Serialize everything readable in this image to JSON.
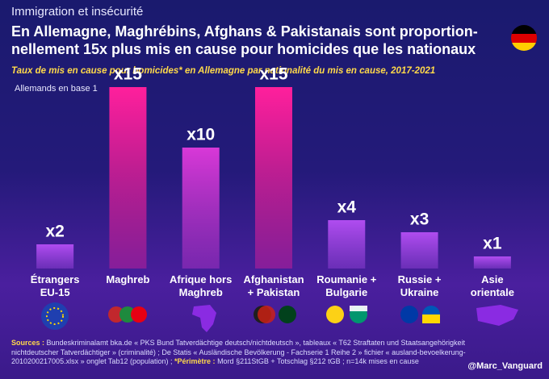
{
  "kicker": "Immigration et insécurité",
  "chart_data": {
    "type": "bar",
    "title": "En Allemagne, Maghrébins, Afghans & Pakistanais sont proportion-nellement 15x plus mis en cause pour homicides que les nationaux",
    "subtitle": "Taux de mis en cause pour homicides* en Allemagne par nationalité du mis en cause, 2017-2021",
    "annotation": "Allemands en base 1",
    "categories": [
      "Étrangers\nEU-15",
      "Maghreb",
      "Afrique hors\nMaghreb",
      "Afghanistan\n+ Pakistan",
      "Roumanie +\nBulgarie",
      "Russie +\nUkraine",
      "Asie\norientale"
    ],
    "values": [
      2,
      15,
      10,
      15,
      4,
      3,
      1
    ],
    "value_labels": [
      "x2",
      "x15",
      "x10",
      "x15",
      "x4",
      "x3",
      "x1"
    ],
    "colors": [
      "#b04cf0",
      "#ff1f9c",
      "#d838d8",
      "#ff1f9c",
      "#b04cf0",
      "#b04cf0",
      "#b04cf0"
    ],
    "ylim": [
      0,
      15
    ]
  },
  "sources_label": "Sources :",
  "sources_text": "Bundeskriminalamt bka.de « PKS Bund Tatverdächtige deutsch/nichtdeutsch », tableaux « T62 Straftaten und Staatsangehörigkeit nichtdeutscher Tatverdächtiger » (criminalité) ; De Statis « Ausländische Bevölkerung - Fachserie 1 Reihe 2 » fichier « ausland-bevoelkerung-2010200217005.xlsx » onglet Tab12 (population) ;",
  "scope_label": "*Périmètre :",
  "scope_text": "Mord §211StGB + Totschlag §212 tGB ; n=14k mises en cause",
  "handle": "@Marc_Vanguard"
}
